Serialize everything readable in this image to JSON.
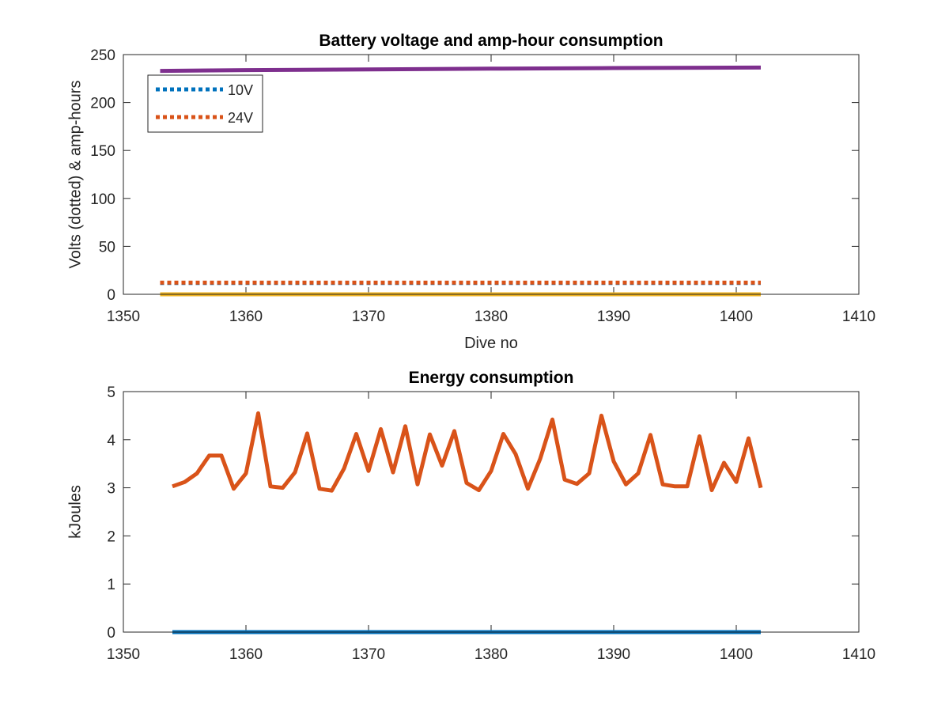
{
  "chart_data": [
    {
      "type": "line",
      "title": "Battery voltage and amp-hour consumption",
      "xlabel": "Dive no",
      "ylabel": "Volts (dotted) & amp-hours",
      "xlim": [
        1350,
        1410
      ],
      "ylim": [
        0,
        250
      ],
      "xticks": [
        1350,
        1360,
        1370,
        1380,
        1390,
        1400,
        1410
      ],
      "yticks": [
        0,
        50,
        100,
        150,
        200,
        250
      ],
      "grid": false,
      "legend_placement": "top-left",
      "series": [
        {
          "name": "10V",
          "legend": true,
          "style": "dotted",
          "color": "#0072BD",
          "x": [
            1353,
            1402
          ],
          "values": [
            11.8,
            11.8
          ]
        },
        {
          "name": "24V",
          "legend": true,
          "style": "dotted",
          "color": "#D95319",
          "x": [
            1353,
            1402
          ],
          "values": [
            12.2,
            12.2
          ]
        },
        {
          "style": "solid",
          "color": "#EDB120",
          "x": [
            1353,
            1402
          ],
          "values": [
            0,
            0
          ]
        },
        {
          "style": "solid",
          "color": "#7E2F8E",
          "x": [
            1353,
            1360,
            1370,
            1380,
            1390,
            1402
          ],
          "values": [
            233,
            233.8,
            234.6,
            235.3,
            236,
            236.5
          ]
        }
      ]
    },
    {
      "type": "line",
      "title": "Energy consumption",
      "xlabel": "",
      "ylabel": "kJoules",
      "xlim": [
        1350,
        1410
      ],
      "ylim": [
        0,
        5
      ],
      "xticks": [
        1350,
        1360,
        1370,
        1380,
        1390,
        1400,
        1410
      ],
      "yticks": [
        0,
        1,
        2,
        3,
        4,
        5
      ],
      "grid": false,
      "series": [
        {
          "style": "solid",
          "color": "#0072BD",
          "x": [
            1354,
            1402
          ],
          "values": [
            0,
            0
          ]
        },
        {
          "style": "solid",
          "color": "#D95319",
          "x": [
            1354,
            1355,
            1356,
            1357,
            1358,
            1359,
            1360,
            1361,
            1362,
            1363,
            1364,
            1365,
            1366,
            1367,
            1368,
            1369,
            1370,
            1371,
            1372,
            1373,
            1374,
            1375,
            1376,
            1377,
            1378,
            1379,
            1380,
            1381,
            1382,
            1383,
            1384,
            1385,
            1386,
            1387,
            1388,
            1389,
            1390,
            1391,
            1392,
            1393,
            1394,
            1395,
            1396,
            1397,
            1398,
            1399,
            1400,
            1401,
            1402
          ],
          "values": [
            3.03,
            3.12,
            3.3,
            3.67,
            3.67,
            2.98,
            3.3,
            4.55,
            3.03,
            3.0,
            3.32,
            4.13,
            2.98,
            2.94,
            3.4,
            4.12,
            3.35,
            4.22,
            3.32,
            4.28,
            3.07,
            4.11,
            3.46,
            4.18,
            3.1,
            2.95,
            3.35,
            4.12,
            3.7,
            2.98,
            3.6,
            4.42,
            3.17,
            3.08,
            3.3,
            4.5,
            3.55,
            3.07,
            3.3,
            4.1,
            3.07,
            3.03,
            3.03,
            4.07,
            2.95,
            3.52,
            3.12,
            4.03,
            3.0
          ]
        }
      ]
    }
  ]
}
